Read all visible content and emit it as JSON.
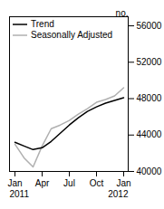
{
  "chart_data": {
    "type": "line",
    "categories": [
      "Jan",
      null,
      null,
      "Apr",
      null,
      null,
      "Jul",
      null,
      null,
      "Oct",
      null,
      null,
      "Jan"
    ],
    "series": [
      {
        "name": "Trend",
        "color": "#000000",
        "values": [
          43200,
          42800,
          42400,
          42600,
          43300,
          44200,
          45100,
          45900,
          46600,
          47100,
          47500,
          47800,
          48100
        ]
      },
      {
        "name": "Seasonally Adjusted",
        "color": "#b0b0b0",
        "values": [
          43000,
          41500,
          40500,
          42800,
          44700,
          45100,
          45600,
          46300,
          46900,
          47600,
          47900,
          48300,
          49200
        ]
      }
    ],
    "ylabel": "no.",
    "ylim": [
      40000,
      57000
    ],
    "yticks": [
      40000,
      44000,
      48000,
      52000,
      56000
    ],
    "legend": "upper left",
    "annotations": [
      "2011",
      "2012"
    ]
  }
}
